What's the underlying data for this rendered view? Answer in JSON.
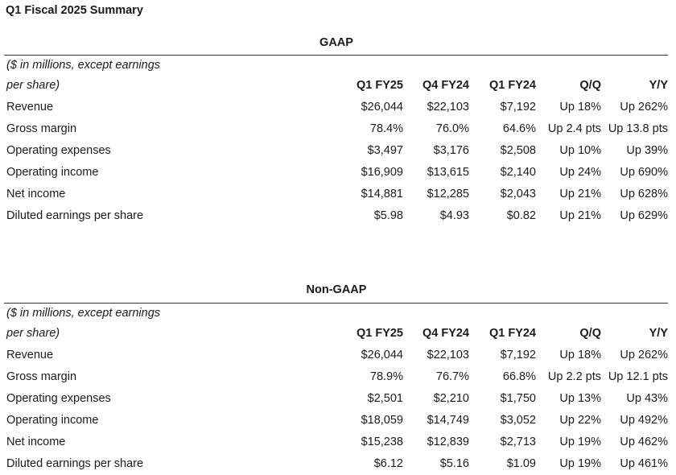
{
  "title": "Q1 Fiscal 2025 Summary",
  "columns": [
    "Q1 FY25",
    "Q4 FY24",
    "Q1 FY24",
    "Q/Q",
    "Y/Y"
  ],
  "note_line1": "($ in millions, except earnings",
  "note_line2": "per share)",
  "gaap": {
    "heading": "GAAP",
    "rows": [
      {
        "label": "Revenue",
        "v": [
          "$26,044",
          "$22,103",
          "$7,192",
          "Up 18%",
          "Up 262%"
        ]
      },
      {
        "label": "Gross margin",
        "v": [
          "78.4%",
          "76.0%",
          "64.6%",
          "Up 2.4 pts",
          "Up 13.8 pts"
        ]
      },
      {
        "label": "Operating expenses",
        "v": [
          "$3,497",
          "$3,176",
          "$2,508",
          "Up 10%",
          "Up 39%"
        ]
      },
      {
        "label": "Operating income",
        "v": [
          "$16,909",
          "$13,615",
          "$2,140",
          "Up 24%",
          "Up 690%"
        ]
      },
      {
        "label": "Net income",
        "v": [
          "$14,881",
          "$12,285",
          "$2,043",
          "Up 21%",
          "Up 628%"
        ]
      },
      {
        "label": "Diluted earnings per share",
        "v": [
          "$5.98",
          "$4.93",
          "$0.82",
          "Up 21%",
          "Up 629%"
        ]
      }
    ]
  },
  "nongaap": {
    "heading": "Non-GAAP",
    "rows": [
      {
        "label": "Revenue",
        "v": [
          "$26,044",
          "$22,103",
          "$7,192",
          "Up 18%",
          "Up 262%"
        ]
      },
      {
        "label": "Gross margin",
        "v": [
          "78.9%",
          "76.7%",
          "66.8%",
          "Up 2.2 pts",
          "Up 12.1 pts"
        ]
      },
      {
        "label": "Operating expenses",
        "v": [
          "$2,501",
          "$2,210",
          "$1,750",
          "Up 13%",
          "Up 43%"
        ]
      },
      {
        "label": "Operating income",
        "v": [
          "$18,059",
          "$14,749",
          "$3,052",
          "Up 22%",
          "Up 492%"
        ]
      },
      {
        "label": "Net income",
        "v": [
          "$15,238",
          "$12,839",
          "$2,713",
          "Up 19%",
          "Up 462%"
        ]
      },
      {
        "label": "Diluted earnings per share",
        "v": [
          "$6.12",
          "$5.16",
          "$1.09",
          "Up 19%",
          "Up 461%"
        ]
      }
    ]
  }
}
